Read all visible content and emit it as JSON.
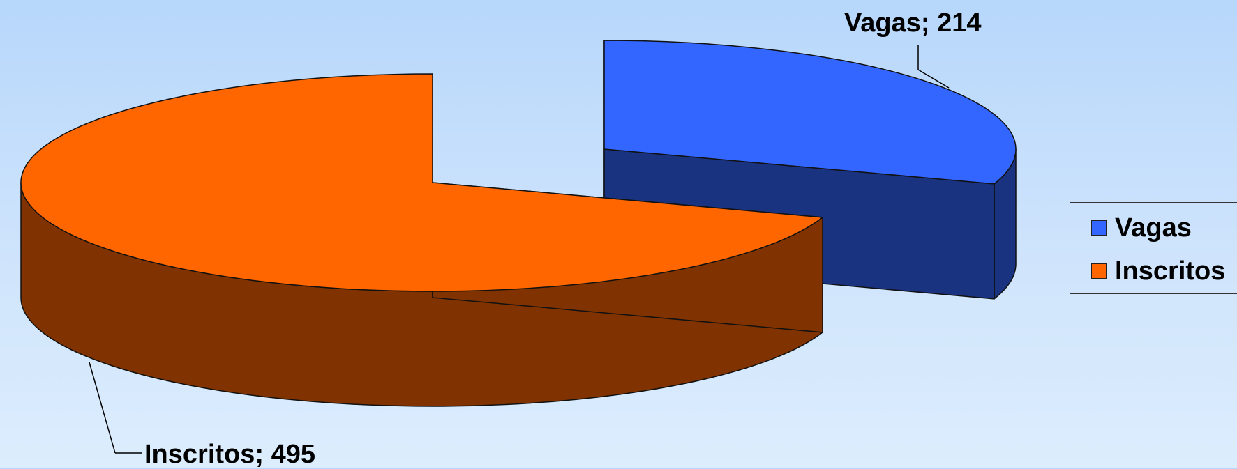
{
  "chart_data": {
    "type": "pie",
    "style": "3d-exploded",
    "categories": [
      "Vagas",
      "Inscritos"
    ],
    "values": [
      214,
      495
    ],
    "colors": {
      "Vagas": {
        "top": "#3366ff",
        "side": "#1a3380"
      },
      "Inscritos": {
        "top": "#ff6600",
        "side": "#803300"
      }
    },
    "data_labels": [
      "Vagas; 214",
      "Inscritos; 495"
    ],
    "legend": {
      "placement": "right",
      "entries": [
        "Vagas",
        "Inscritos"
      ]
    }
  }
}
